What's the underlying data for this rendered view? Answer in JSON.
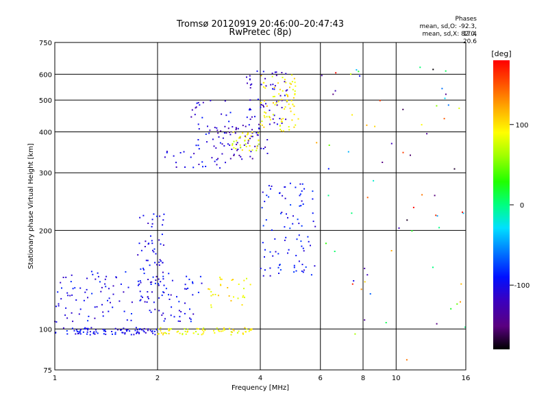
{
  "header": {
    "title_line1": "Tromsø 20120919 20:46:00–20:47:43",
    "title_line2": "RwPretec (8p)"
  },
  "stats": {
    "label": "Phases",
    "line_o": "mean, sd,O: -92.3, 17.4",
    "line_x": "mean, sd,X:  82.0, 20.6"
  },
  "colorbar": {
    "label": "[deg]",
    "ticks": [
      "100",
      "0",
      "-100"
    ],
    "range": [
      -180,
      180
    ],
    "colormap": [
      "#000000",
      "#5a0080",
      "#3a00c0",
      "#0010ff",
      "#0070ff",
      "#00e0ff",
      "#00ff80",
      "#20ff00",
      "#a0ff00",
      "#ffff00",
      "#ffb000",
      "#ff5000",
      "#ff0000"
    ]
  },
  "chart_data": {
    "type": "scatter",
    "title": "Tromsø 20120919 20:46:00–20:47:43",
    "subtitle": "RwPretec (8p)",
    "xlabel": "Frequency [MHz]",
    "ylabel": "Stationary phase Virtual Height [km]",
    "xscale": "log",
    "yscale": "log",
    "xlim": [
      1,
      16
    ],
    "ylim": [
      75,
      750
    ],
    "xticks": [
      1,
      2,
      4,
      6,
      8,
      10,
      16
    ],
    "yticks": [
      75,
      100,
      200,
      300,
      400,
      500,
      600,
      750
    ],
    "grid": true,
    "color_scale": "phase [deg]",
    "legend": "colorbar-right",
    "clusters": [
      {
        "freq_range": [
          1.0,
          2.0
        ],
        "height_range": [
          96,
          101
        ],
        "phase_deg": -100,
        "count": 90
      },
      {
        "freq_range": [
          2.0,
          3.8
        ],
        "height_range": [
          96,
          101
        ],
        "phase_deg": 90,
        "count": 70
      },
      {
        "freq_range": [
          1.0,
          2.7
        ],
        "height_range": [
          105,
          150
        ],
        "phase_deg": -100,
        "count": 140
      },
      {
        "freq_range": [
          1.75,
          2.1
        ],
        "height_range": [
          120,
          230
        ],
        "phase_deg": -100,
        "count": 60
      },
      {
        "freq_range": [
          2.8,
          3.8
        ],
        "height_range": [
          115,
          145
        ],
        "phase_deg": 95,
        "count": 30
      },
      {
        "freq_range": [
          2.1,
          3.2
        ],
        "height_range": [
          310,
          360
        ],
        "phase_deg": -105,
        "count": 25
      },
      {
        "freq_range": [
          2.5,
          3.3
        ],
        "height_range": [
          360,
          500
        ],
        "phase_deg": -105,
        "count": 35
      },
      {
        "freq_range": [
          3.0,
          4.2
        ],
        "height_range": [
          330,
          420
        ],
        "phase_deg": -120,
        "count": 60
      },
      {
        "freq_range": [
          3.6,
          4.8
        ],
        "height_range": [
          420,
          620
        ],
        "phase_deg": -110,
        "count": 60
      },
      {
        "freq_range": [
          3.3,
          4.0
        ],
        "height_range": [
          350,
          400
        ],
        "phase_deg": 85,
        "count": 35
      },
      {
        "freq_range": [
          4.0,
          5.2
        ],
        "height_range": [
          400,
          600
        ],
        "phase_deg": 95,
        "count": 80
      },
      {
        "freq_range": [
          4.0,
          5.8
        ],
        "height_range": [
          145,
          280
        ],
        "phase_deg": -95,
        "count": 90
      },
      {
        "freq_range": [
          5.8,
          16.0
        ],
        "height_range": [
          80,
          650
        ],
        "phase_deg": 0,
        "count": 70
      }
    ]
  }
}
